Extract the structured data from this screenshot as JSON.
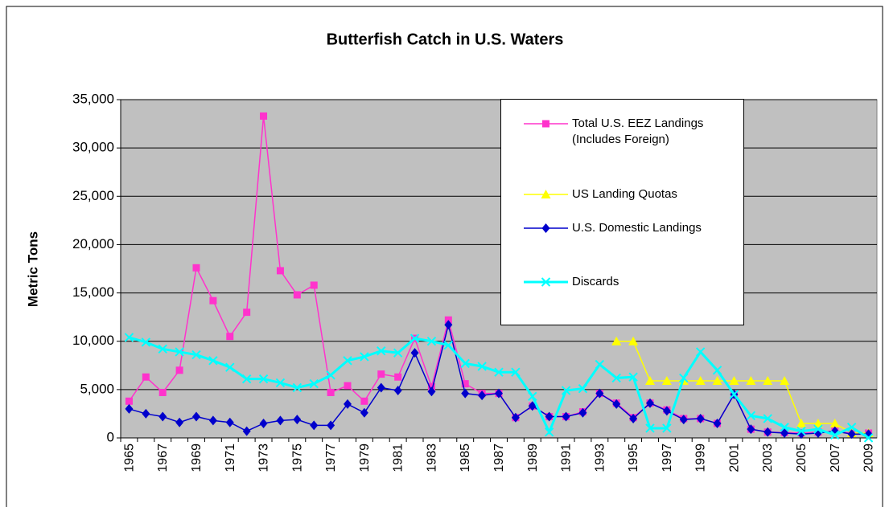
{
  "chart_data": {
    "type": "line",
    "title": "Butterfish Catch  in U.S. Waters",
    "y_label": "Metric Tons",
    "categories": [
      "1965",
      null,
      "1967",
      null,
      "1969",
      null,
      "1971",
      null,
      "1973",
      null,
      "1975",
      null,
      "1977",
      null,
      "1979",
      null,
      "1981",
      null,
      "1983",
      null,
      "1985",
      null,
      "1987",
      null,
      "1989",
      null,
      "1991",
      null,
      "1993",
      null,
      "1995",
      null,
      "1997",
      null,
      "1999",
      null,
      "2001",
      null,
      "2003",
      null,
      "2005",
      null,
      "2007",
      null,
      "2009"
    ],
    "series": [
      {
        "name": "Total U.S. EEZ Landings (Includes Foreign)",
        "color": "#ff33cc",
        "marker": "square",
        "values": [
          3800,
          6300,
          4700,
          7000,
          17600,
          14200,
          10500,
          13000,
          33300,
          17300,
          14800,
          15800,
          4700,
          5400,
          3800,
          6600,
          6300,
          10300,
          5300,
          12200,
          5600,
          4600,
          4600,
          2100,
          3300,
          2200,
          2200,
          2700,
          4600,
          3600,
          2100,
          3600,
          2900,
          2000,
          2000,
          1500,
          4500,
          900,
          600,
          550,
          500,
          600,
          700,
          500,
          500
        ]
      },
      {
        "name": "US Landing Quotas",
        "color": "#ffff00",
        "marker": "triangle",
        "values": [
          null,
          null,
          null,
          null,
          null,
          null,
          null,
          null,
          null,
          null,
          null,
          null,
          null,
          null,
          null,
          null,
          null,
          null,
          null,
          null,
          null,
          null,
          null,
          null,
          null,
          null,
          null,
          null,
          null,
          10000,
          10000,
          5900,
          5900,
          5900,
          5900,
          5900,
          5900,
          5900,
          5900,
          5900,
          1500,
          1500,
          1500,
          500,
          500
        ]
      },
      {
        "name": "U.S. Domestic Landings",
        "color": "#0000cc",
        "marker": "diamond",
        "values": [
          3000,
          2500,
          2200,
          1600,
          2200,
          1800,
          1600,
          700,
          1500,
          1800,
          1900,
          1300,
          1300,
          3500,
          2600,
          5200,
          4900,
          8800,
          4800,
          11700,
          4600,
          4400,
          4600,
          2100,
          3300,
          2200,
          2200,
          2600,
          4600,
          3500,
          2000,
          3600,
          2800,
          1900,
          2000,
          1500,
          4500,
          900,
          600,
          500,
          400,
          500,
          700,
          400,
          400
        ]
      },
      {
        "name": "Discards",
        "color": "#00ffff",
        "marker": "x",
        "values": [
          10400,
          9900,
          9200,
          8900,
          8600,
          8000,
          7300,
          6100,
          6100,
          5700,
          5200,
          5600,
          6500,
          8000,
          8400,
          9000,
          8800,
          10300,
          10000,
          9600,
          7700,
          7400,
          6800,
          6800,
          4300,
          600,
          4900,
          5100,
          7600,
          6200,
          6300,
          1000,
          1000,
          6200,
          8900,
          7000,
          4500,
          2300,
          2000,
          1100,
          700,
          900,
          300,
          1100,
          0
        ]
      }
    ],
    "ylim": [
      0,
      35000
    ],
    "yticks": [
      0,
      {
        "value": 5000,
        "label": "5,000"
      },
      {
        "value": 10000,
        "label": "10,000"
      },
      {
        "value": 15000,
        "label": "15,000"
      },
      {
        "value": 20000,
        "label": "20,000"
      },
      {
        "value": 25000,
        "label": "25,000"
      },
      {
        "value": 30000,
        "label": "30,000"
      },
      {
        "value": 35000,
        "label": "35,000"
      }
    ],
    "grid": true,
    "plot_background": "#c0c0c0"
  }
}
